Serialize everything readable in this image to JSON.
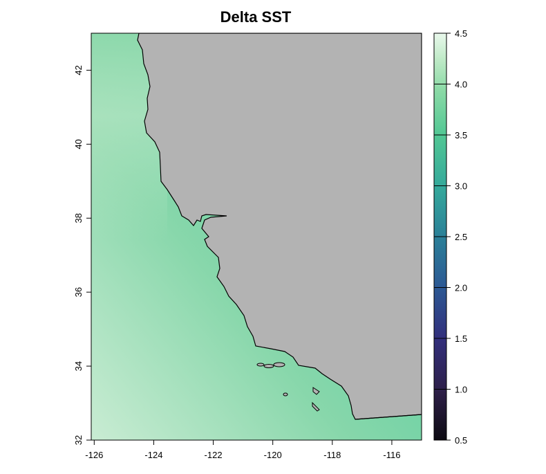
{
  "title": "Delta SST",
  "map": {
    "x_ticks": [
      -126,
      -124,
      -122,
      -120,
      -118,
      -116
    ],
    "y_ticks": [
      32,
      34,
      36,
      38,
      40,
      42
    ],
    "x_range": [
      -126.1,
      -115.0
    ],
    "y_range": [
      32.0,
      43.0
    ],
    "land_color": "#b3b3b3",
    "water_max_color": "#c9ecd3",
    "water_min_color": "#4ecb9b"
  },
  "legend": {
    "ticks": [
      "4.5",
      "4.0",
      "3.5",
      "3.0",
      "2.5",
      "2.0",
      "1.5",
      "1.0",
      "0.5"
    ],
    "range": [
      0.5,
      4.5
    ],
    "colors": [
      "#0d0a12",
      "#2d1f48",
      "#322f7c",
      "#2c5a94",
      "#2b8098",
      "#34a89b",
      "#52c794",
      "#8bdaa6",
      "#c2ebc9",
      "#e9f8ec"
    ]
  }
}
